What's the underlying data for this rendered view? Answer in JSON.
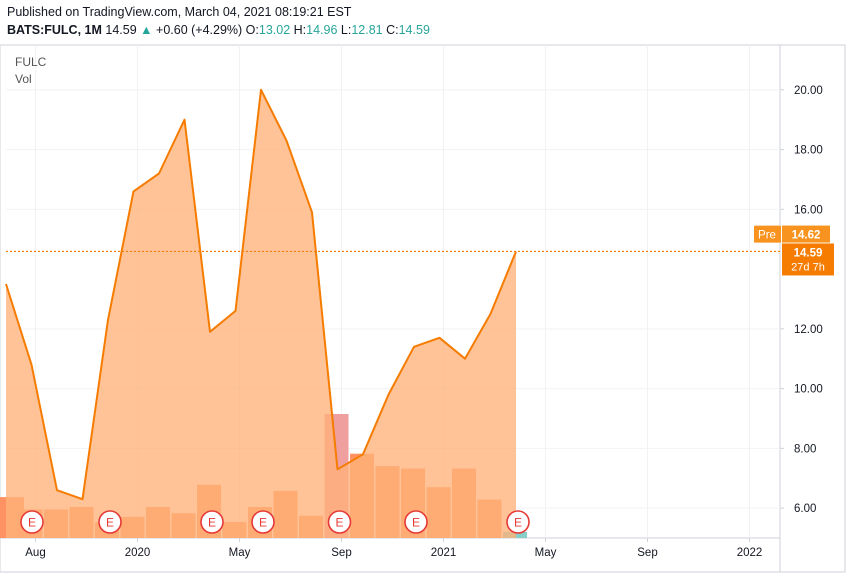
{
  "header": {
    "published": "Published on TradingView.com, March 04, 2021 08:19:21 EST",
    "symbol_full": "BATS:FULC, 1M",
    "last": "14.59",
    "change": "+0.60 (+4.29%)",
    "o_label": "O:",
    "o_value": "13.02",
    "h_label": "H:",
    "h_value": "14.96",
    "l_label": "L:",
    "l_value": "12.81",
    "c_label": "C:",
    "c_value": "14.59",
    "up_arrow": "▲"
  },
  "legend": {
    "symbol": "FULC",
    "volume": "Vol"
  },
  "badges": {
    "pre_label": "Pre",
    "pre_value": "14.62",
    "last_value": "14.59",
    "countdown": "27d 7h"
  },
  "colors": {
    "line": "#f57c00",
    "area": "#ffb27a",
    "vol_up": "#ff8c5a",
    "vol_down": "#ef9a9a",
    "vol_teal": "#80cbc4",
    "pre_badge": "#f7931e",
    "last_badge": "#f57c00",
    "earnings": "#e53935"
  },
  "chart_data": {
    "type": "area",
    "series": [
      {
        "name": "FULC",
        "values": [
          13.5,
          10.8,
          6.6,
          6.3,
          12.3,
          16.6,
          17.2,
          19.0,
          11.9,
          12.6,
          20.0,
          18.3,
          15.9,
          7.3,
          7.8,
          9.8,
          11.4,
          11.7,
          11.0,
          12.5,
          14.59
        ]
      },
      {
        "name": "Vol",
        "values": [
          0.33,
          0.23,
          0.23,
          0.25,
          0.13,
          0.17,
          0.25,
          0.2,
          0.43,
          0.13,
          0.25,
          0.38,
          0.18,
          1.0,
          0.68,
          0.58,
          0.56,
          0.41,
          0.56,
          0.31,
          0.05
        ]
      }
    ],
    "earnings_marks": [
      0,
      4,
      8,
      10,
      13,
      16,
      20
    ],
    "earnings_label": "E",
    "x_ticks": [
      "Aug",
      "2020",
      "May",
      "Sep",
      "2021",
      "May",
      "Sep",
      "2022"
    ],
    "y_ticks": [
      "6.00",
      "8.00",
      "10.00",
      "12.00",
      "16.00",
      "18.00",
      "20.00"
    ],
    "ylim": [
      5,
      21.5
    ],
    "pre_price": 14.62,
    "last_price": 14.59
  }
}
